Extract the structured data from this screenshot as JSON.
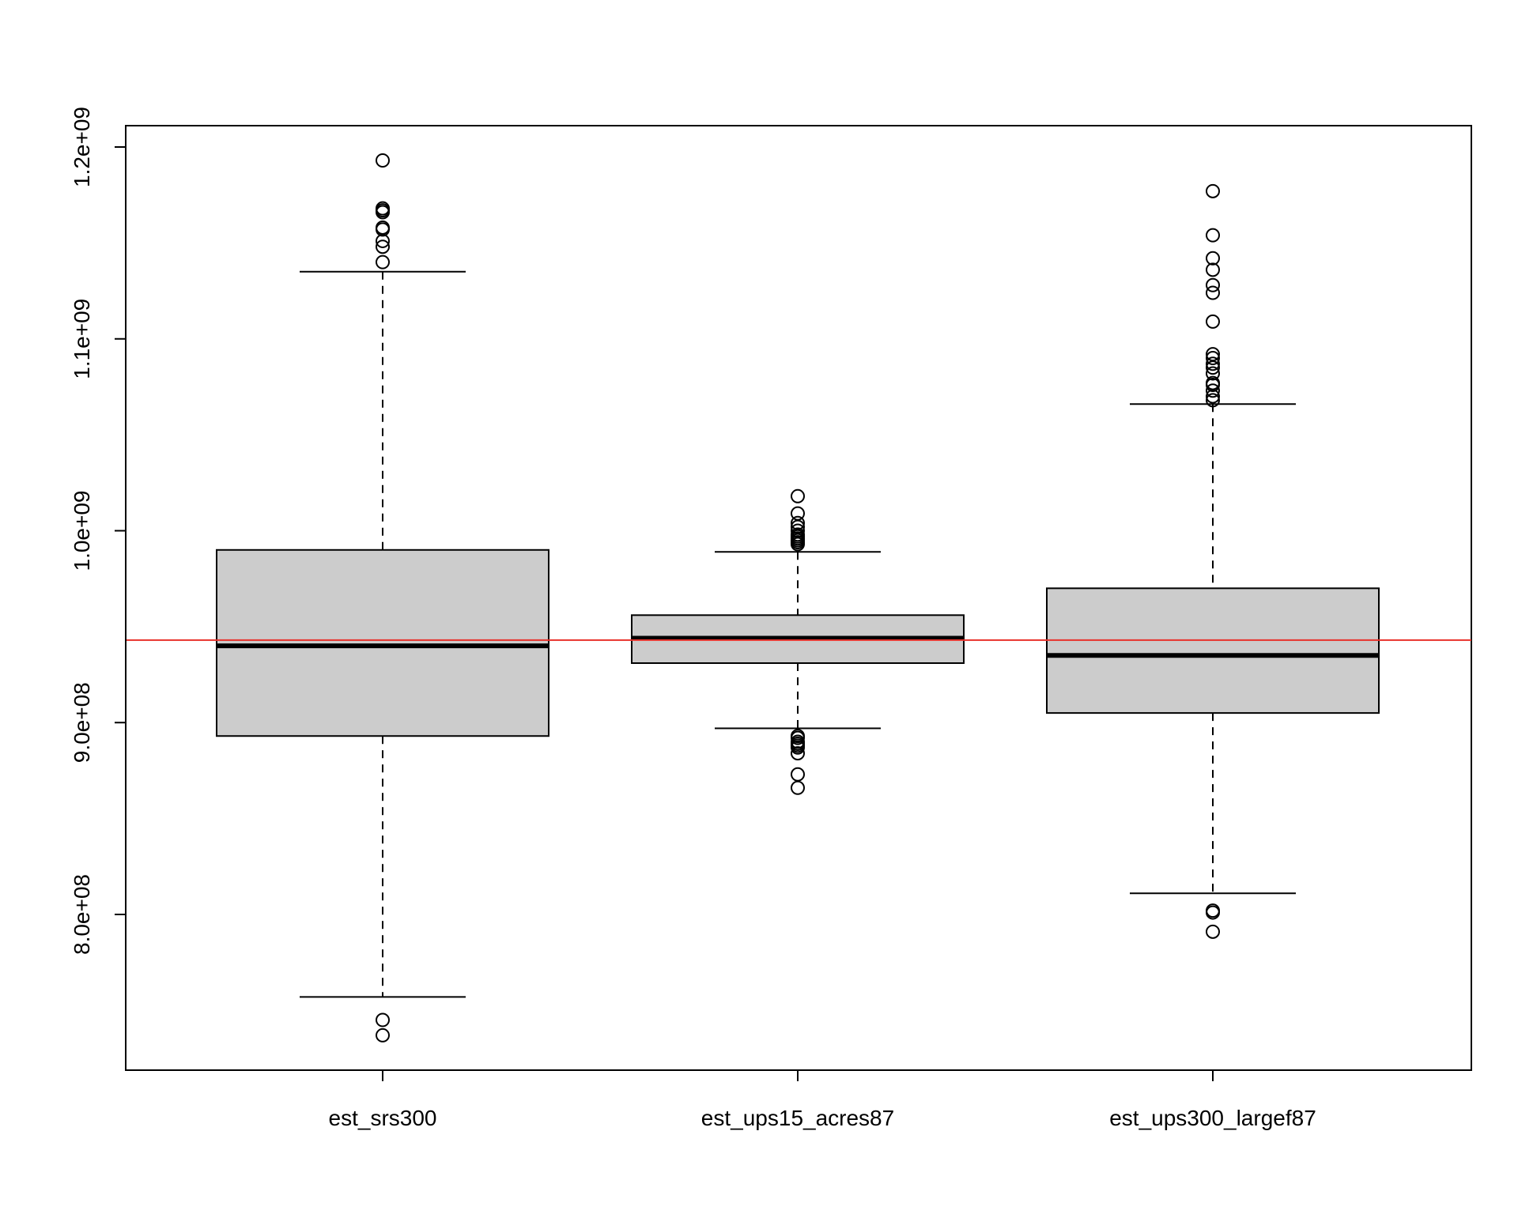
{
  "chart_data": {
    "type": "box",
    "title": "",
    "xlabel": "",
    "ylabel": "",
    "ylim": [
      718000000,
      1210000000
    ],
    "y_ticks": [
      800000000,
      900000000,
      1000000000,
      1100000000,
      1200000000
    ],
    "y_tick_labels": [
      "8.0e+08",
      "9.0e+08",
      "1.0e+09",
      "1.1e+09",
      "1.2e+09"
    ],
    "categories": [
      "est_srs300",
      "est_ups15_acres87",
      "est_ups300_largef87"
    ],
    "boxes": [
      {
        "name": "est_srs300",
        "whisker_low": 757000000,
        "q1": 893000000,
        "median": 940000000,
        "q3": 990000000,
        "whisker_high": 1135000000,
        "outliers": [
          1193000000,
          1168000000,
          1167000000,
          1166000000,
          1158000000,
          1157000000,
          1151000000,
          1148000000,
          1140000000,
          745000000,
          737000000
        ]
      },
      {
        "name": "est_ups15_acres87",
        "whisker_low": 897000000,
        "q1": 931000000,
        "median": 944000000,
        "q3": 956000000,
        "whisker_high": 989000000,
        "outliers": [
          1018000000,
          1009000000,
          1004000000,
          1002000000,
          1000000000,
          998000000,
          997000000,
          996000000,
          995000000,
          994000000,
          993000000,
          893000000,
          892000000,
          890000000,
          889000000,
          888000000,
          887000000,
          884000000,
          873000000,
          866000000
        ]
      },
      {
        "name": "est_ups300_largef87",
        "whisker_low": 811000000,
        "q1": 905000000,
        "median": 935000000,
        "q3": 970000000,
        "whisker_high": 1066000000,
        "outliers": [
          1177000000,
          1154000000,
          1142000000,
          1136000000,
          1128000000,
          1124000000,
          1109000000,
          1092000000,
          1090000000,
          1087000000,
          1085000000,
          1082000000,
          1077000000,
          1076000000,
          1073000000,
          1070000000,
          1068000000,
          802000000,
          801000000,
          791000000
        ]
      }
    ],
    "reference_line": {
      "value": 943000000,
      "color": "#e8312a"
    },
    "colors": {
      "box_fill": "#cccccc",
      "stroke": "#000000"
    }
  }
}
